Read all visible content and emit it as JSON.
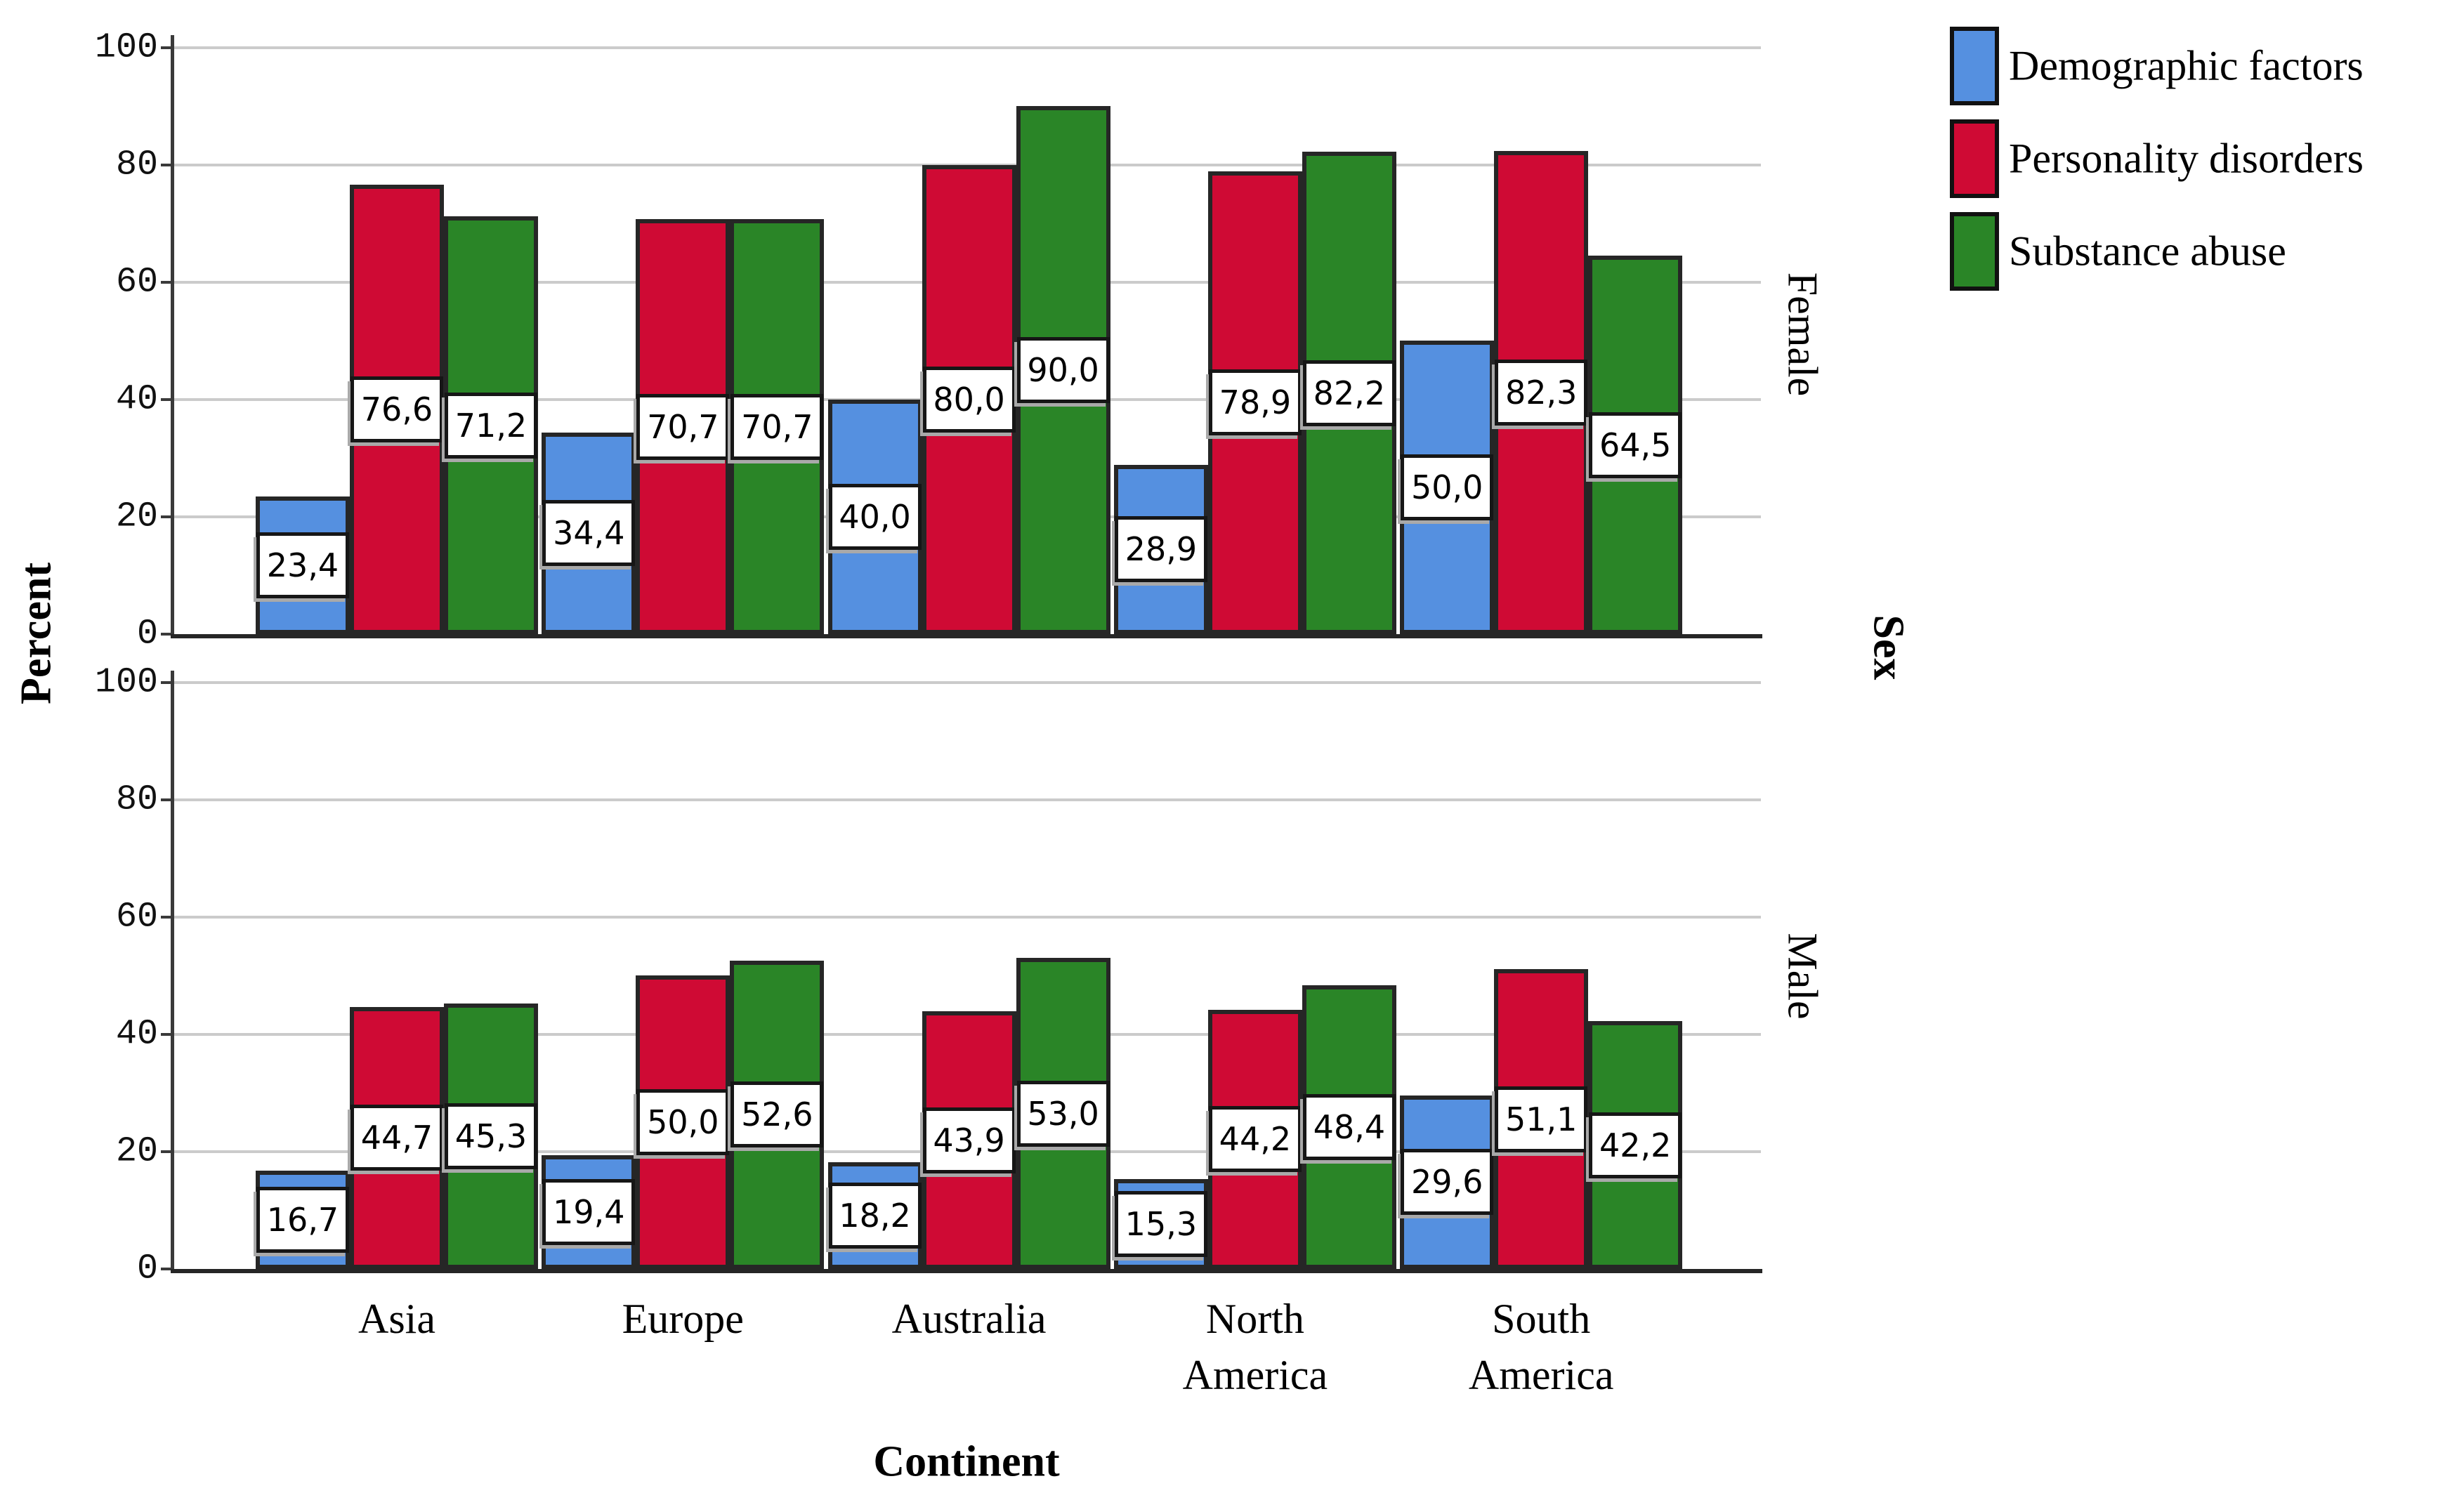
{
  "chart_data": {
    "type": "bar",
    "title": "",
    "ylabel": "Percent",
    "xlabel": "Continent",
    "panel_axis_label": "Sex",
    "decimal_separator": ",",
    "ylim": [
      0,
      100
    ],
    "yticks": [
      0,
      20,
      40,
      60,
      80,
      100
    ],
    "grid": "horizontal",
    "categories": [
      "Asia",
      "Europe",
      "Australia",
      "North\nAmerica",
      "South\nAmerica"
    ],
    "panels": [
      {
        "label": "Female",
        "series": [
          {
            "name": "Demographic factors",
            "color": "#5590e0",
            "values": [
              23.4,
              34.4,
              40.0,
              28.9,
              50.0
            ]
          },
          {
            "name": "Personality disorders",
            "color": "#cf0a34",
            "values": [
              76.6,
              70.7,
              80.0,
              78.9,
              82.3
            ]
          },
          {
            "name": "Substance abuse",
            "color": "#2a8527",
            "values": [
              71.2,
              70.7,
              90.0,
              82.2,
              64.5
            ]
          }
        ]
      },
      {
        "label": "Male",
        "series": [
          {
            "name": "Demographic factors",
            "color": "#5590e0",
            "values": [
              16.7,
              19.4,
              18.2,
              15.3,
              29.6
            ]
          },
          {
            "name": "Personality disorders",
            "color": "#cf0a34",
            "values": [
              44.7,
              50.0,
              43.9,
              44.2,
              51.1
            ]
          },
          {
            "name": "Substance abuse",
            "color": "#2a8527",
            "values": [
              45.3,
              52.6,
              53.0,
              48.4,
              42.2
            ]
          }
        ]
      }
    ],
    "legend": {
      "position": "top-right",
      "entries": [
        {
          "label": "Demographic factors",
          "color": "#5590e0"
        },
        {
          "label": "Personality disorders",
          "color": "#cf0a34"
        },
        {
          "label": "Substance abuse",
          "color": "#2a8527"
        }
      ]
    }
  }
}
